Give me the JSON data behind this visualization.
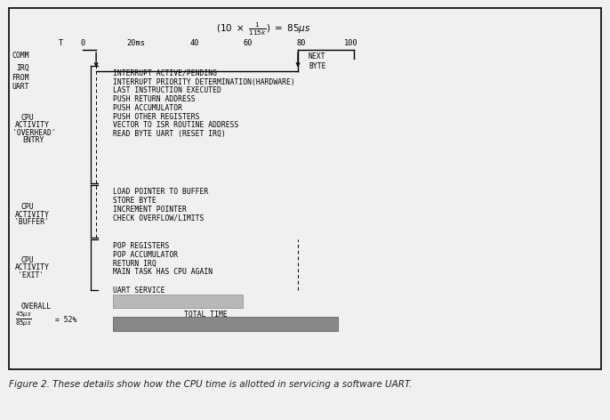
{
  "figure_bg": "#f0f0f0",
  "box_bg": "#ffffff",
  "overhead_items": [
    "INTERRUPT ACTIVE/PENDING",
    "INTERRUPT PRIORITY DETERMINATION(HARDWARE)",
    "LAST INSTRUCTION EXECUTED",
    "PUSH RETURN ADDRESS",
    "PUSH ACCUMULATOR",
    "PUSH OTHER REGISTERS",
    "VECTOR TO ISR ROUTINE ADDRESS",
    "READ BYTE UART (RESET IRQ)"
  ],
  "buffer_items": [
    "LOAD POINTER TO BUFFER",
    "STORE BYTE",
    "INCREMENT POINTER",
    "CHECK OVERFLOW/LIMITS"
  ],
  "exit_items": [
    "POP REGISTERS",
    "POP ACCUMULATOR",
    "RETURN IRQ",
    "MAIN TASK HAS CPU AGAIN"
  ],
  "caption": "Figure 2. These details show how the CPU time is allotted in servicing a software UART.",
  "bar_color_light": "#b8b8b8",
  "bar_color_dark": "#888888"
}
